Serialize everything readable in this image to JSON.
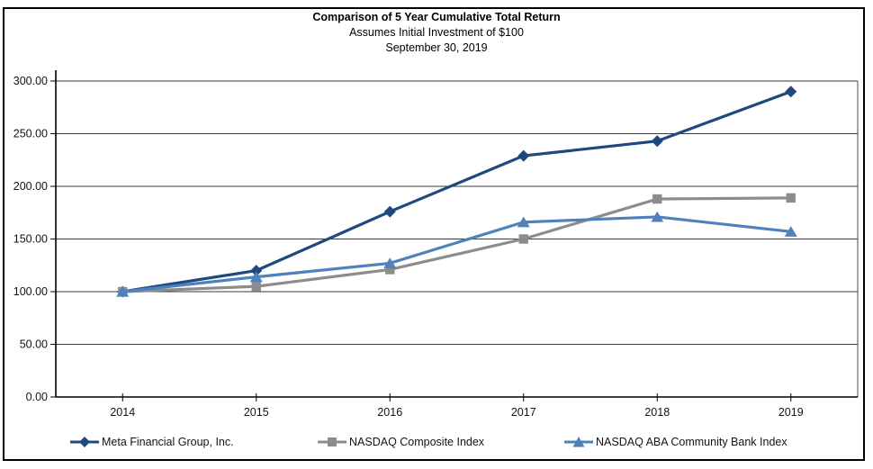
{
  "title": {
    "line1": "Comparison of 5 Year Cumulative Total Return",
    "line2": "Assumes Initial Investment of $100",
    "line3": "September 30, 2019"
  },
  "chart_data": {
    "type": "line",
    "categories": [
      "2014",
      "2015",
      "2016",
      "2017",
      "2018",
      "2019"
    ],
    "series": [
      {
        "name": "Meta Financial Group, Inc.",
        "marker": "diamond",
        "color": "#1F497D",
        "values": [
          100,
          120,
          176,
          229,
          243,
          290
        ]
      },
      {
        "name": "NASDAQ Composite Index",
        "marker": "square",
        "color": "#8C8C8C",
        "values": [
          100,
          105,
          121,
          150,
          188,
          189
        ]
      },
      {
        "name": "NASDAQ ABA Community Bank Index",
        "marker": "triangle",
        "color": "#4F81BD",
        "values": [
          100,
          114,
          127,
          166,
          171,
          157
        ]
      }
    ],
    "xlabel": "",
    "ylabel": "",
    "ylim": [
      0,
      300
    ],
    "yticks": [
      0,
      50,
      100,
      150,
      200,
      250,
      300
    ],
    "ytick_labels": [
      "0.00",
      "50.00",
      "100.00",
      "150.00",
      "200.00",
      "250.00",
      "300.00"
    ],
    "grid": "horizontal",
    "legend_position": "bottom"
  },
  "colors": {
    "axis": "#000000",
    "gridline": "#3a3a3a",
    "plot_border": "#4d4d4d",
    "outer_border": "#000000"
  }
}
